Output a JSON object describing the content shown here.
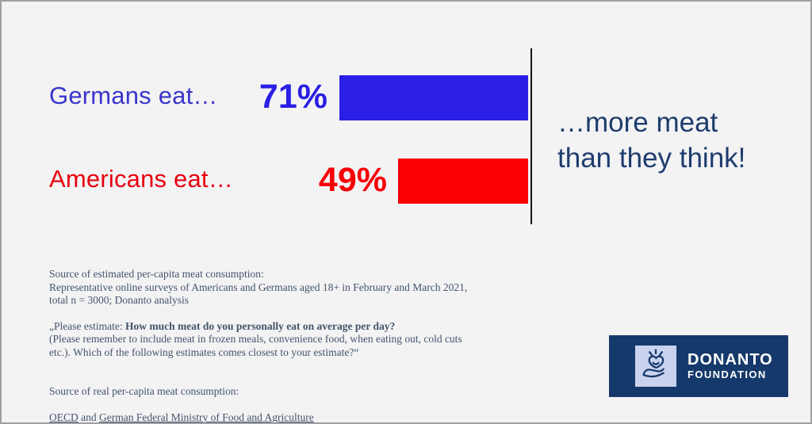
{
  "chart_data": {
    "type": "bar",
    "orientation": "horizontal",
    "alignment": "bars right-aligned to vertical baseline",
    "categories": [
      "Germans eat…",
      "Americans eat…"
    ],
    "values": [
      71,
      49
    ],
    "value_labels": [
      "71%",
      "49%"
    ],
    "unit": "%",
    "bar_colors": [
      "#2b1fe6",
      "#fa0004"
    ],
    "label_colors": [
      "#3a35cc",
      "#e8000f"
    ],
    "value_colors": [
      "#2a1ee4",
      "#f70006"
    ],
    "axis_line_color": "#141414",
    "title": "…more meat than they think!",
    "title_lines": [
      "…more meat",
      "than they think!"
    ],
    "title_color": "#1e3c6d",
    "grid": false,
    "legend": false
  },
  "footer": {
    "para1": "Source of estimated per-capita meat consumption:\nRepresentative online surveys of Americans and Germans aged 18+ in February and March 2021,\ntotal n = 3000; Donanto analysis",
    "para2_prefix": "„Please estimate: ",
    "para2_bold": "How much meat do you personally eat on average per day?",
    "para2_rest": "\n(Please remember to include meat in frozen meals, convenience food, when eating out, cold cuts\netc.). Which of the following estimates comes closest to your estimate?“",
    "para3_intro": "Source of real per-capita meat consumption:",
    "link_oecd": "OECD",
    "link_joiner": " and ",
    "link_ministry": "German Federal Ministry of Food and Agriculture",
    "text_color": "#44546a"
  },
  "logo": {
    "name_line1": "DONANTO",
    "name_line2": "FOUNDATION",
    "bg_color": "#16396b",
    "tile_color": "#c9d3ef",
    "icon_color": "#17386a",
    "icon": "hand-holding-heart-icon"
  },
  "slide": {
    "background": "#f3f3f4",
    "border_color": "#a0a0a3"
  }
}
